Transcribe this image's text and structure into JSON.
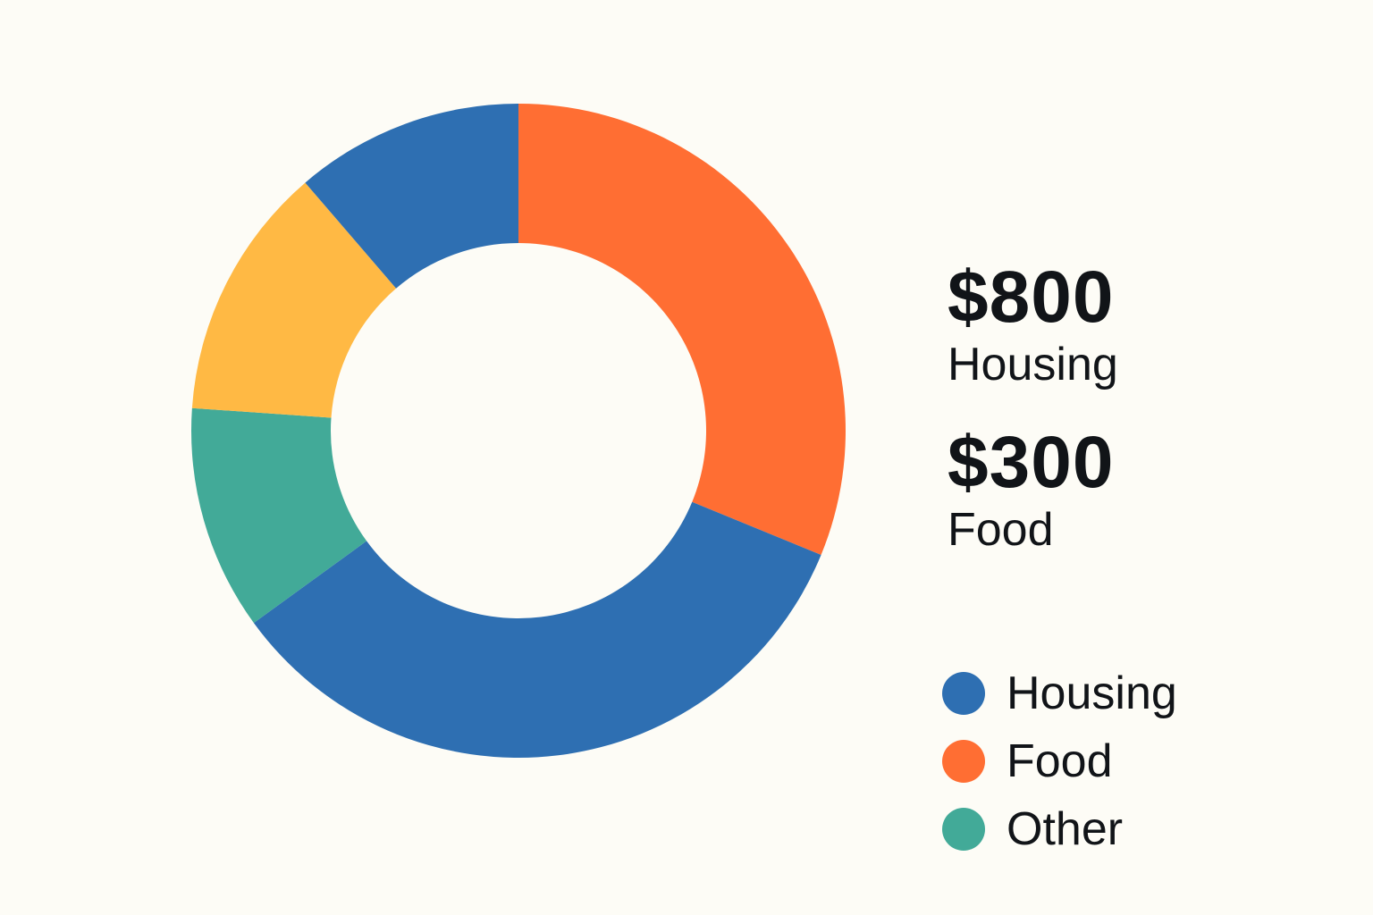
{
  "chart_data": {
    "type": "pie",
    "variant": "donut",
    "start_angle_deg": 0,
    "direction": "clockwise",
    "slices": [
      {
        "key": "food",
        "value": 31.2,
        "color": "#ff6e33"
      },
      {
        "key": "housing",
        "value": 33.8,
        "color": "#2e6fb2"
      },
      {
        "key": "other",
        "value": 11.1,
        "color": "#42aa98"
      },
      {
        "key": "unlabeled_yellow",
        "value": 12.6,
        "color": "#ffb944"
      },
      {
        "key": "housing_2",
        "value": 11.3,
        "color": "#2e6fb2"
      }
    ],
    "legend": {
      "position": "right",
      "items": [
        {
          "label": "Housing",
          "color": "#2e6fb2"
        },
        {
          "label": "Food",
          "color": "#ff6e33"
        },
        {
          "label": "Other",
          "color": "#42aa98"
        }
      ]
    }
  },
  "summary": [
    {
      "value": "$800",
      "label": "Housing"
    },
    {
      "value": "$300",
      "label": "Food"
    }
  ],
  "colors": {
    "background": "#fdfcf6",
    "text": "#111418"
  }
}
